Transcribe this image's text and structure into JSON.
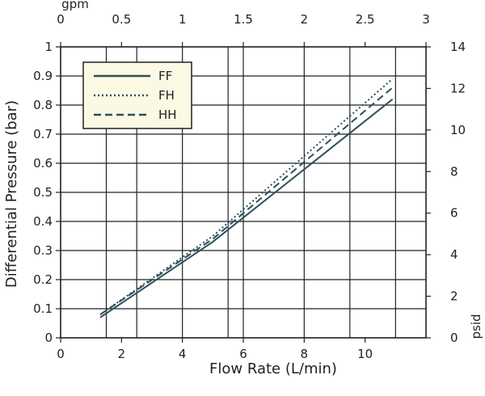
{
  "chart_data": {
    "type": "line",
    "xlabel": "Flow Rate (L/min)",
    "ylabel": "Differential Pressure (bar)",
    "top_axis_unit": "gpm",
    "right_axis_unit": "psid",
    "xlim": [
      0,
      12
    ],
    "ylim": [
      0,
      1
    ],
    "x_ticks": [
      0,
      2,
      4,
      6,
      8,
      10
    ],
    "y_ticks": [
      0,
      0.1,
      0.2,
      0.3,
      0.4,
      0.5,
      0.6,
      0.7,
      0.8,
      0.9,
      1
    ],
    "top_ticks": [
      0,
      0.5,
      1,
      1.5,
      2,
      2.5,
      3
    ],
    "right_ticks": [
      0,
      2,
      4,
      6,
      8,
      10,
      12,
      14
    ],
    "top_axis_range": [
      0,
      3
    ],
    "right_axis_range": [
      0,
      14
    ],
    "x_grid_lines": [
      0,
      1.5,
      2.5,
      4,
      5.5,
      6,
      8,
      9.5,
      11,
      12
    ],
    "y_grid_lines": [
      0,
      0.1,
      0.2,
      0.3,
      0.4,
      0.5,
      0.6,
      0.7,
      0.8,
      0.9,
      1
    ],
    "grid": true,
    "legend_position": "top-left",
    "series": [
      {
        "name": "FF",
        "style": "solid",
        "x": [
          1.3,
          5.0,
          10.9
        ],
        "y": [
          0.07,
          0.33,
          0.82
        ]
      },
      {
        "name": "FH",
        "style": "dotted",
        "x": [
          1.3,
          5.0,
          10.9
        ],
        "y": [
          0.08,
          0.35,
          0.89
        ]
      },
      {
        "name": "HH",
        "style": "dashed",
        "x": [
          1.3,
          5.0,
          10.9
        ],
        "y": [
          0.08,
          0.34,
          0.86
        ]
      }
    ]
  },
  "colors": {
    "line": "#2d4f5c",
    "grid": "#222222",
    "legend_background": "#fbf8e4"
  }
}
